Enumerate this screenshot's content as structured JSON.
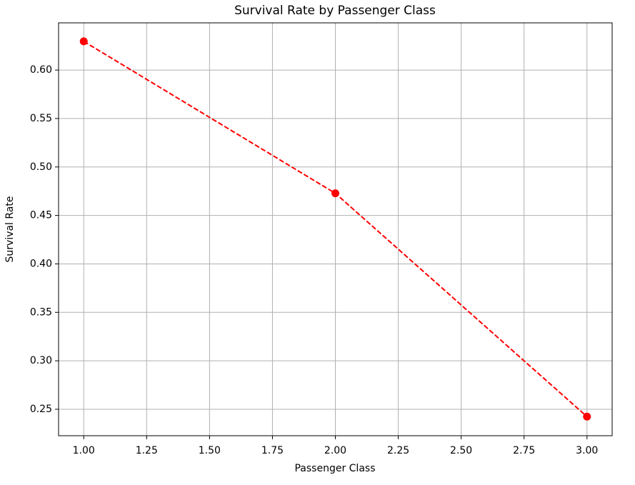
{
  "chart_data": {
    "type": "line",
    "title": "Survival Rate by Passenger Class",
    "x_label": "Passenger Class",
    "y_label": "Survival Rate",
    "x": [
      1,
      2,
      3
    ],
    "series": [
      {
        "values": [
          0.6296,
          0.4728,
          0.2424
        ],
        "color": "#ff0000"
      }
    ],
    "xlim": [
      0.9,
      3.1
    ],
    "xticks": [
      {
        "value": 1,
        "label": "1.00"
      },
      {
        "value": 1.25,
        "label": "1.25"
      },
      {
        "value": 1.5,
        "label": "1.50"
      },
      {
        "value": 1.75,
        "label": "1.75"
      },
      {
        "value": 2,
        "label": "2.00"
      },
      {
        "value": 2.25,
        "label": "2.25"
      },
      {
        "value": 2.5,
        "label": "2.50"
      },
      {
        "value": 2.75,
        "label": "2.75"
      },
      {
        "value": 3,
        "label": "3.00"
      }
    ],
    "ylim": [
      0.2227,
      0.6487
    ],
    "yticks": [
      0.25,
      {
        "value": 0.3,
        "label": "0.30"
      },
      0.35,
      {
        "value": 0.4,
        "label": "0.40"
      },
      0.45,
      {
        "value": 0.5,
        "label": "0.50"
      },
      0.55,
      {
        "value": 0.6,
        "label": "0.60"
      }
    ],
    "grid": true,
    "line_style": "dashed",
    "marker": "circle"
  }
}
